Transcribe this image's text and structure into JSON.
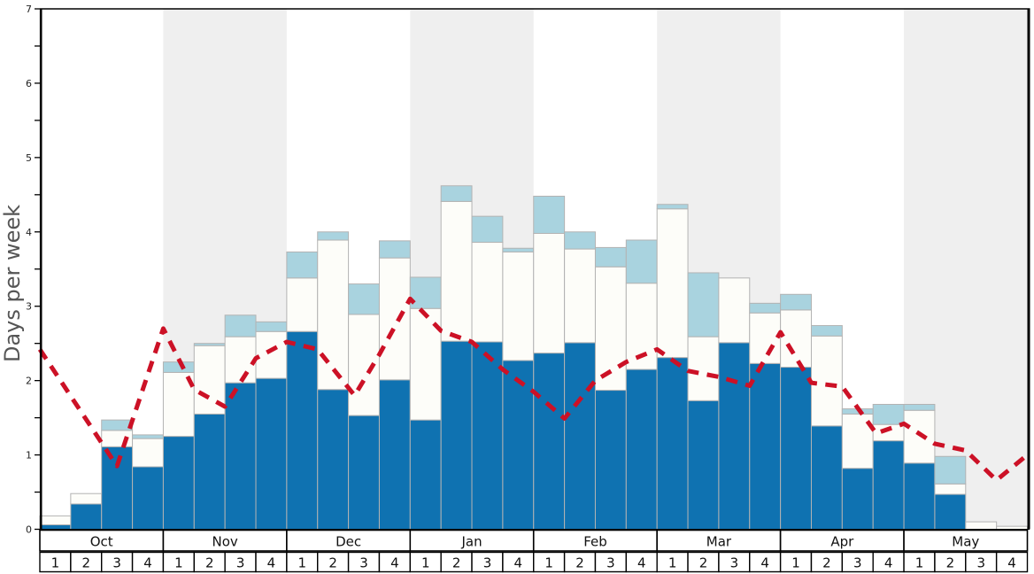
{
  "chart_data": {
    "type": "bar",
    "title": "",
    "ylabel": "Days per week",
    "ylim": [
      0,
      7
    ],
    "y_ticks": [
      0,
      1,
      2,
      3,
      4,
      5,
      6,
      7
    ],
    "y_minor_step": 0.5,
    "months": [
      "Oct",
      "Nov",
      "Dec",
      "Jan",
      "Feb",
      "Mar",
      "Apr",
      "May"
    ],
    "week_labels": [
      "1",
      "2",
      "3",
      "4"
    ],
    "shaded_month_indices": [
      1,
      3,
      5,
      7
    ],
    "grid": false,
    "legend": "none",
    "series": [
      {
        "name": "heavy-snow-days",
        "color": "#0F72B1",
        "values": [
          0.06,
          0.34,
          1.11,
          0.84,
          1.25,
          1.55,
          1.97,
          2.03,
          2.66,
          1.88,
          1.53,
          2.01,
          1.47,
          2.53,
          2.52,
          2.27,
          2.37,
          2.51,
          1.87,
          2.15,
          2.31,
          1.73,
          2.51,
          2.23,
          2.18,
          1.39,
          0.82,
          1.19,
          0.89,
          0.47,
          0.0,
          0.0
        ]
      },
      {
        "name": "moderate-snow-days",
        "color": "#FDFDF9",
        "values": [
          0.12,
          0.14,
          0.22,
          0.38,
          0.86,
          0.92,
          0.62,
          0.63,
          0.72,
          2.01,
          1.36,
          1.64,
          1.5,
          1.88,
          1.34,
          1.46,
          1.61,
          1.26,
          1.66,
          1.16,
          2.0,
          0.86,
          0.87,
          0.68,
          0.77,
          1.21,
          0.73,
          0.22,
          0.71,
          0.14,
          0.1,
          0.04
        ]
      },
      {
        "name": "light-snow-days",
        "color": "#A9D3DF",
        "values": [
          0.0,
          0.0,
          0.14,
          0.05,
          0.14,
          0.03,
          0.29,
          0.13,
          0.35,
          0.11,
          0.41,
          0.23,
          0.42,
          0.21,
          0.35,
          0.05,
          0.5,
          0.23,
          0.26,
          0.58,
          0.06,
          0.86,
          0.0,
          0.13,
          0.21,
          0.14,
          0.07,
          0.27,
          0.08,
          0.37,
          0.0,
          0.0
        ]
      }
    ],
    "average_line": {
      "name": "historical-average-line",
      "color": "#CC1126",
      "style": "dashed",
      "x_weeks": [
        0,
        2.5,
        4,
        5,
        6,
        7,
        8,
        9,
        10.2,
        11,
        12,
        13,
        14,
        15,
        16,
        17,
        18,
        19,
        20,
        21,
        22,
        23,
        24,
        25,
        26,
        27.1,
        28,
        29,
        30,
        31,
        32
      ],
      "days": [
        2.42,
        0.85,
        2.7,
        1.88,
        1.65,
        2.3,
        2.52,
        2.42,
        1.8,
        2.35,
        3.1,
        2.67,
        2.52,
        2.15,
        1.85,
        1.49,
        2.0,
        2.25,
        2.42,
        2.13,
        2.05,
        1.93,
        2.65,
        1.97,
        1.92,
        1.29,
        1.42,
        1.15,
        1.06,
        0.66,
        1.0
      ]
    },
    "colors": {
      "stripe_gray": "#EFEFEF",
      "bar_border": "#B3B3B3",
      "axis_line": "#000000",
      "tick_text": "#222222",
      "ylabel_text": "#555555",
      "band_fill": "#FFFFFF",
      "band_border": "#000000"
    }
  }
}
